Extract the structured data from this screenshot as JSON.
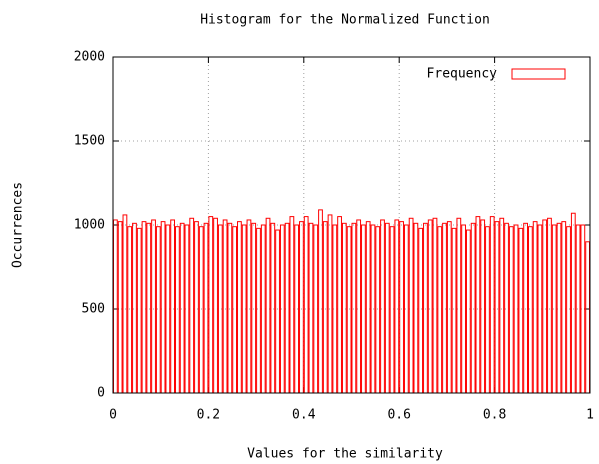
{
  "chart_data": {
    "type": "histogram",
    "title": "Histogram for the Normalized Function",
    "x_label": "Values for the similarity",
    "y_label": "Occurrences",
    "bins": [
      0,
      0.01,
      0.02,
      0.03,
      0.04,
      0.05,
      0.06,
      0.07,
      0.08,
      0.09,
      0.1,
      0.11,
      0.12,
      0.13,
      0.14,
      0.15,
      0.16,
      0.17,
      0.18,
      0.19,
      0.2,
      0.21,
      0.22,
      0.23,
      0.24,
      0.25,
      0.26,
      0.27,
      0.28,
      0.29,
      0.3,
      0.31,
      0.32,
      0.33,
      0.34,
      0.35,
      0.36,
      0.37,
      0.38,
      0.39,
      0.4,
      0.41,
      0.42,
      0.43,
      0.44,
      0.45,
      0.46,
      0.47,
      0.48,
      0.49,
      0.5,
      0.51,
      0.52,
      0.53,
      0.54,
      0.55,
      0.56,
      0.57,
      0.58,
      0.59,
      0.6,
      0.61,
      0.62,
      0.63,
      0.64,
      0.65,
      0.66,
      0.67,
      0.68,
      0.69,
      0.7,
      0.71,
      0.72,
      0.73,
      0.74,
      0.75,
      0.76,
      0.77,
      0.78,
      0.79,
      0.8,
      0.81,
      0.82,
      0.83,
      0.84,
      0.85,
      0.86,
      0.87,
      0.88,
      0.89,
      0.9,
      0.91,
      0.92,
      0.93,
      0.94,
      0.95,
      0.96,
      0.97,
      0.98,
      0.99,
      1
    ],
    "series": [
      {
        "name": "Frequency",
        "color": "#ff0000",
        "values": [
          1030,
          1020,
          1060,
          990,
          1010,
          980,
          1020,
          1010,
          1030,
          990,
          1020,
          1000,
          1030,
          990,
          1010,
          1000,
          1040,
          1020,
          990,
          1010,
          1050,
          1040,
          1000,
          1030,
          1010,
          990,
          1020,
          1000,
          1030,
          1010,
          980,
          1000,
          1040,
          1010,
          970,
          1000,
          1010,
          1050,
          1000,
          1020,
          1050,
          1010,
          1000,
          1090,
          1020,
          1060,
          1000,
          1050,
          1010,
          990,
          1010,
          1030,
          1000,
          1020,
          1000,
          990,
          1030,
          1010,
          990,
          1030,
          1020,
          1000,
          1040,
          1010,
          980,
          1010,
          1030,
          1040,
          990,
          1010,
          1020,
          980,
          1040,
          1000,
          970,
          1010,
          1050,
          1030,
          990,
          1050,
          1020,
          1040,
          1010,
          990,
          1000,
          980,
          1010,
          990,
          1020,
          1000,
          1030,
          1040,
          1000,
          1010,
          1020,
          990,
          1070,
          1000,
          1000,
          900
        ]
      }
    ],
    "xlim": [
      0,
      1
    ],
    "xticks": [
      0,
      0.2,
      0.4,
      0.6,
      0.8,
      1
    ],
    "ylim": [
      0,
      2000
    ],
    "yticks": [
      0,
      500,
      1000,
      1500,
      2000
    ],
    "grid": true,
    "legend": "top-right"
  }
}
